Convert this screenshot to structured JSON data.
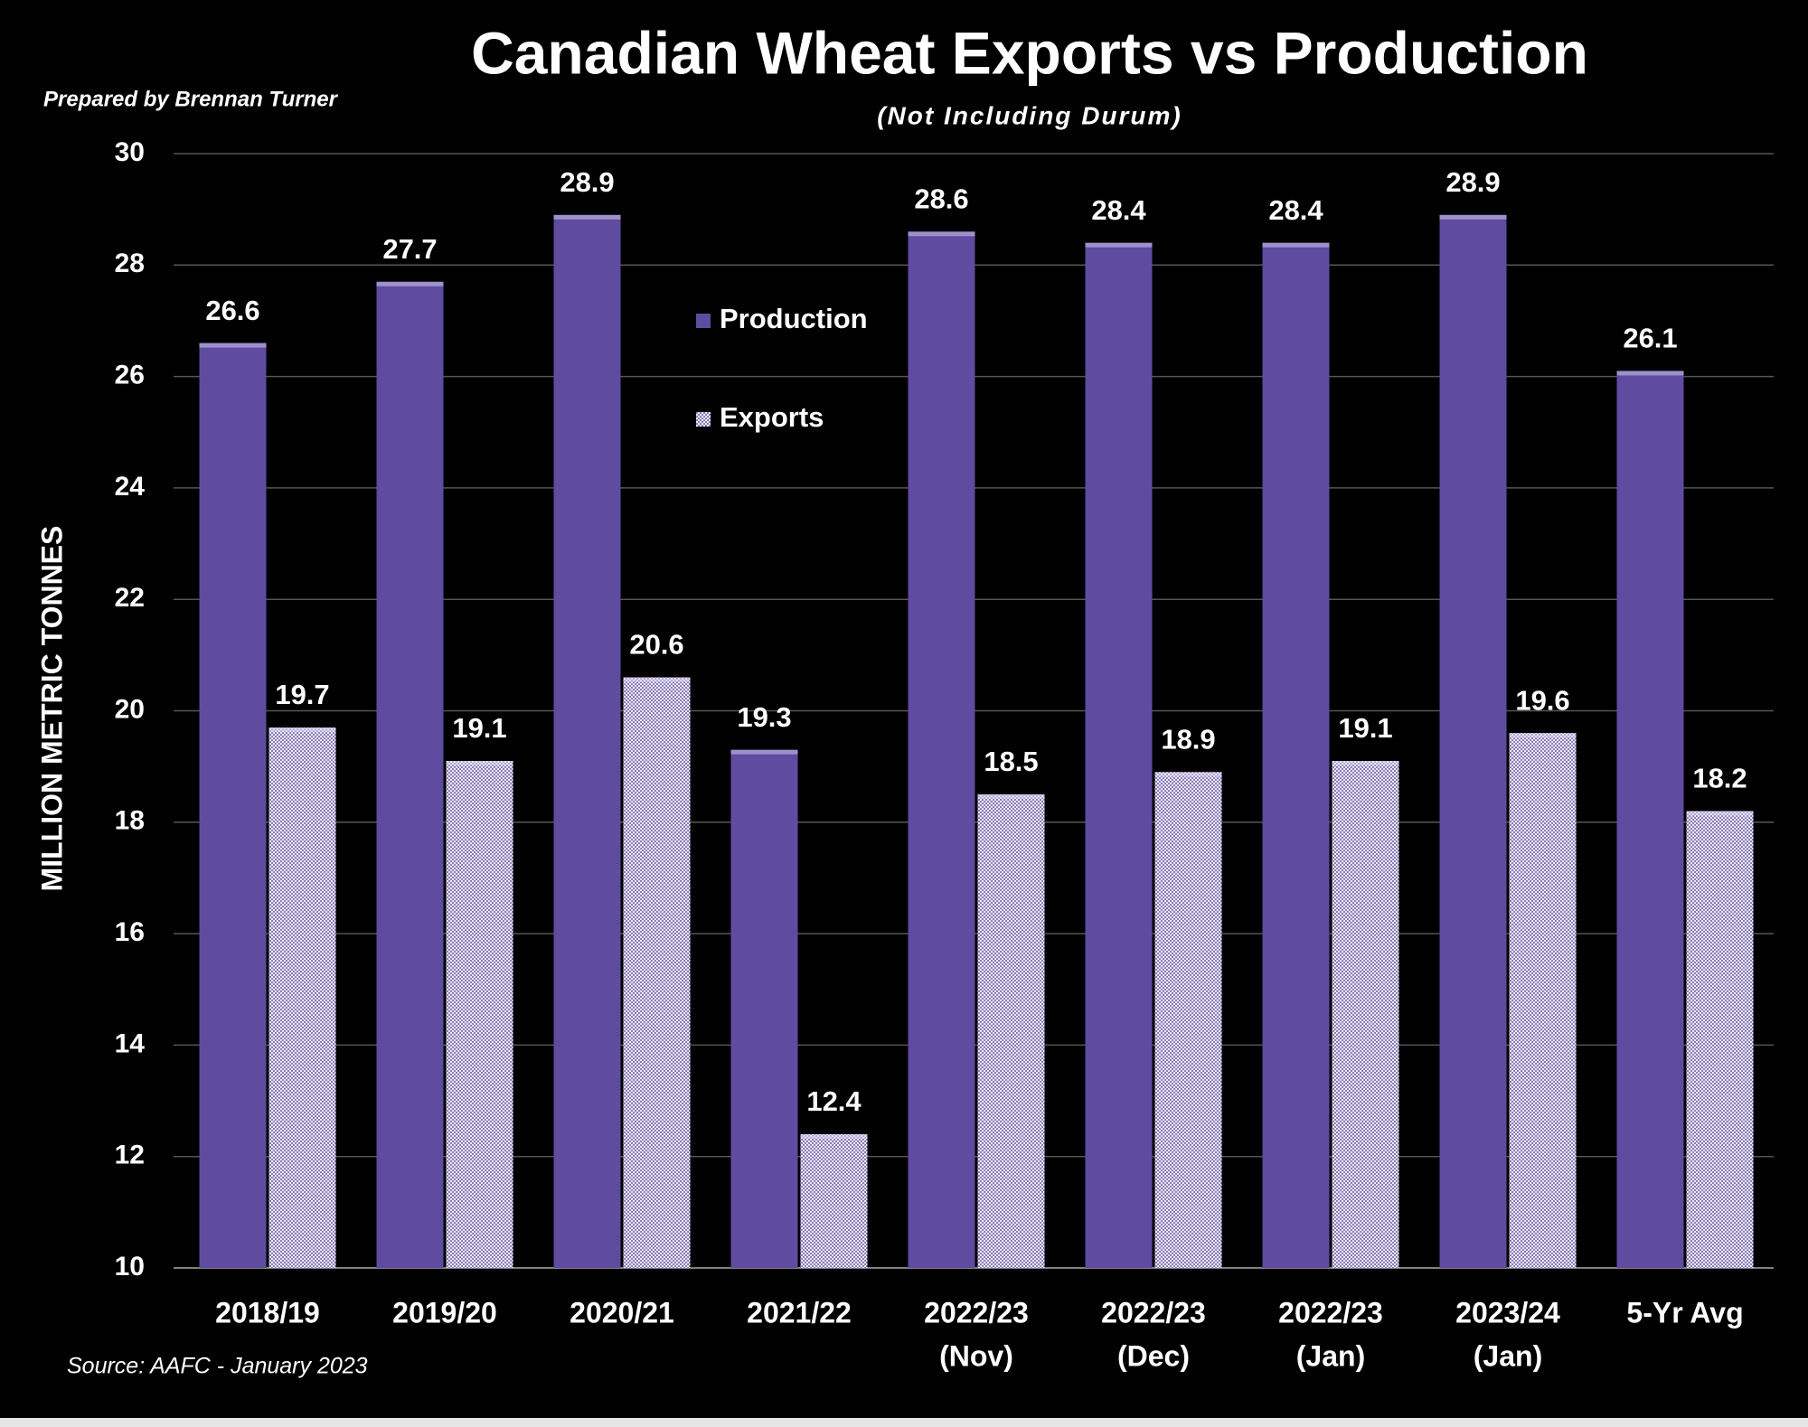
{
  "chart_data": {
    "type": "bar",
    "title": "Canadian Wheat Exports vs Production",
    "subtitle": "(Not Including Durum)",
    "credit": "Prepared by Brennan Turner",
    "source": "Source: AAFC -  January 2023",
    "y_label": "MILLION METRIC TONNES",
    "categories": [
      [
        "2018/19"
      ],
      [
        "2019/20"
      ],
      [
        "2020/21"
      ],
      [
        "2021/22"
      ],
      [
        "2022/23",
        "(Nov)"
      ],
      [
        "2022/23",
        "(Dec)"
      ],
      [
        "2022/23",
        "(Jan)"
      ],
      [
        "2023/24",
        "(Jan)"
      ],
      [
        "5-Yr Avg"
      ]
    ],
    "series": [
      {
        "name": "Production",
        "color": "#5f4ba0",
        "values": [
          26.6,
          27.7,
          28.9,
          19.3,
          28.6,
          28.4,
          28.4,
          28.9,
          26.1
        ]
      },
      {
        "name": "Exports",
        "color": "#b8acd8",
        "values": [
          19.7,
          19.1,
          20.6,
          12.4,
          18.5,
          18.9,
          19.1,
          19.6,
          18.2
        ]
      }
    ],
    "ylim": [
      10,
      30
    ],
    "yticks": [
      10,
      12,
      14,
      16,
      18,
      20,
      22,
      24,
      26,
      28,
      30
    ],
    "grid": true
  }
}
